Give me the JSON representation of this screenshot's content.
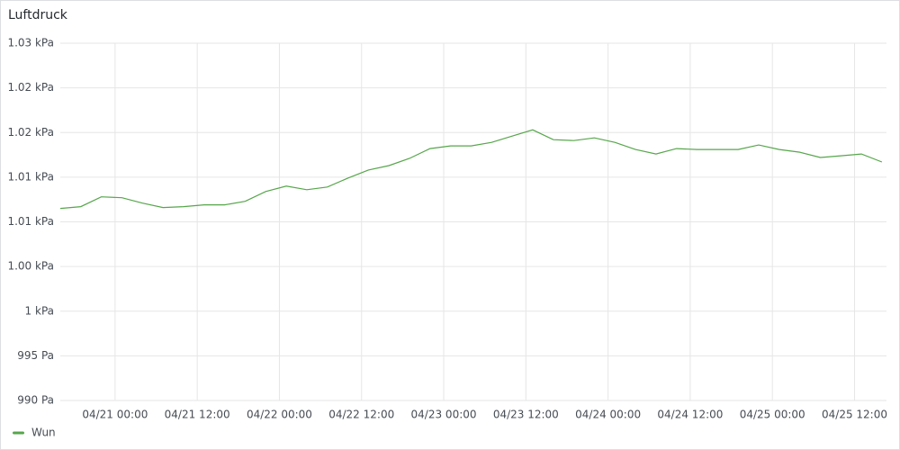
{
  "chart_data": {
    "type": "line",
    "title": "Luftdruck",
    "x": [
      "04/20 16:00",
      "04/20 19:00",
      "04/20 22:00",
      "04/21 01:00",
      "04/21 04:00",
      "04/21 07:00",
      "04/21 10:00",
      "04/21 13:00",
      "04/21 16:00",
      "04/21 19:00",
      "04/21 22:00",
      "04/22 01:00",
      "04/22 04:00",
      "04/22 07:00",
      "04/22 10:00",
      "04/22 13:00",
      "04/22 16:00",
      "04/22 19:00",
      "04/22 22:00",
      "04/23 01:00",
      "04/23 04:00",
      "04/23 07:00",
      "04/23 10:00",
      "04/23 13:00",
      "04/23 16:00",
      "04/23 19:00",
      "04/23 22:00",
      "04/24 01:00",
      "04/24 04:00",
      "04/24 07:00",
      "04/24 10:00",
      "04/24 13:00",
      "04/24 16:00",
      "04/24 19:00",
      "04/24 22:00",
      "04/25 01:00",
      "04/25 04:00",
      "04/25 07:00",
      "04/25 10:00",
      "04/25 13:00",
      "04/25 16:00"
    ],
    "series": [
      {
        "name": "Wun",
        "color": "#56a64b",
        "values": [
          1011.5,
          1011.7,
          1012.8,
          1012.7,
          1012.1,
          1011.6,
          1011.7,
          1011.9,
          1011.9,
          1012.3,
          1013.4,
          1014.0,
          1013.6,
          1013.9,
          1014.9,
          1015.8,
          1016.3,
          1017.1,
          1018.2,
          1018.5,
          1018.5,
          1018.9,
          1019.6,
          1020.3,
          1019.2,
          1019.1,
          1019.4,
          1018.9,
          1018.1,
          1017.6,
          1018.2,
          1018.1,
          1018.1,
          1018.1,
          1018.6,
          1018.1,
          1017.8,
          1017.2,
          1017.4,
          1017.6,
          1016.7
        ]
      }
    ],
    "xlim": [
      "04/20 16:00",
      "04/25 16:40"
    ],
    "xticks": [
      "04/21 00:00",
      "04/21 12:00",
      "04/22 00:00",
      "04/22 12:00",
      "04/23 00:00",
      "04/23 12:00",
      "04/24 00:00",
      "04/24 12:00",
      "04/25 00:00",
      "04/25 12:00"
    ],
    "ylim": [
      990,
      1030
    ],
    "yticks": [
      {
        "value": 990,
        "label": "990 Pa"
      },
      {
        "value": 995,
        "label": "995 Pa"
      },
      {
        "value": 1000,
        "label": "1 kPa"
      },
      {
        "value": 1005,
        "label": "1.00 kPa"
      },
      {
        "value": 1010,
        "label": "1.01 kPa"
      },
      {
        "value": 1015,
        "label": "1.01 kPa"
      },
      {
        "value": 1020,
        "label": "1.02 kPa"
      },
      {
        "value": 1025,
        "label": "1.02 kPa"
      },
      {
        "value": 1030,
        "label": "1.03 kPa"
      }
    ],
    "grid": true
  }
}
